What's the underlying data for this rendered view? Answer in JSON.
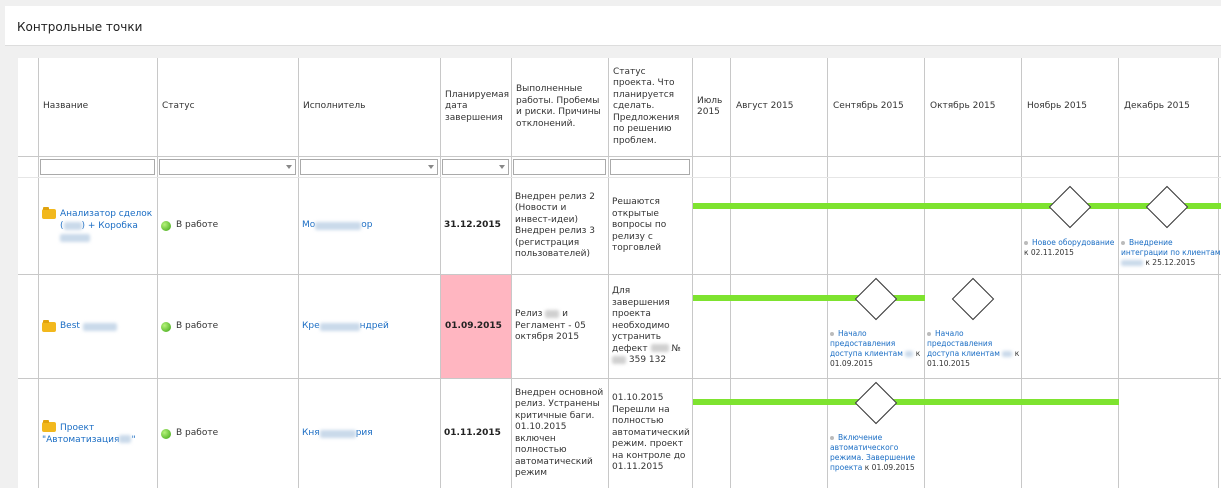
{
  "page_title": "Контрольные точки",
  "columns": {
    "name": "Название",
    "status": "Статус",
    "assignee": "Исполнитель",
    "planned": "Планируемая дата завершения",
    "done": "Выполненные работы. Пробемы и риски. Причины отклонений.",
    "project_status": "Статус проекта. Что планируется сделать. Предложения по решению проблем.",
    "m1": "Июль 2015",
    "m2": "Август 2015",
    "m3": "Сентябрь 2015",
    "m4": "Октябрь 2015",
    "m5": "Ноябрь 2015",
    "m6": "Декабрь 2015"
  },
  "rows": [
    {
      "name_a": "Анализатор сделок",
      "name_b": "(",
      "name_c": ") + Коробка",
      "status": "В работе",
      "assignee_a": "Мо",
      "assignee_b": "ор",
      "planned": "31.12.2015",
      "done": "Внедрен релиз 2 (Новости и инвест-идеи) Внедрен релиз 3 (регистрация пользователей)",
      "project_status": "Решаются открытые вопросы по релизу с торговлей",
      "ms1_title": "Новое оборудование",
      "ms1_date": "к 02.11.2015",
      "ms2_title": "Внедрение интеграции по клиентам",
      "ms2_date": "к 25.12.2015"
    },
    {
      "name_a": "Best",
      "status": "В работе",
      "assignee_a": "Кре",
      "assignee_b": "ндрей",
      "planned": "01.09.2015",
      "done_a": "Релиз",
      "done_b": "и Регламент - 05 октября 2015",
      "ps_a": "Для завершения проекта необходимо устранить дефект",
      "ps_b": "№",
      "ps_c": "359 132",
      "ms1_title": "Начало предоставления доступа клиентам",
      "ms1_date": "к 01.09.2015",
      "ms2_title": "Начало предоставления доступа клиентам",
      "ms2_date": "к 01.10.2015"
    },
    {
      "name_a": "Проект",
      "name_b": "\"Автоматизация",
      "name_c": "\"",
      "status": "В работе",
      "assignee_a": "Кня",
      "assignee_b": "рия",
      "planned": "01.11.2015",
      "done": "Внедрен основной релиз. Устранены критичные баги. 01.10.2015 включен полностью автоматический режим",
      "project_status": "01.10.2015 Перешли на полностью автоматический режим. проект на контроле до 01.11.2015",
      "ms1_title": "Включение автоматического режима. Завершение проекта",
      "ms1_date": "к 01.09.2015"
    }
  ],
  "colors": {
    "bar": "#7ee32f",
    "overdue": "#ffb6c1",
    "link": "#1a6dc4"
  }
}
